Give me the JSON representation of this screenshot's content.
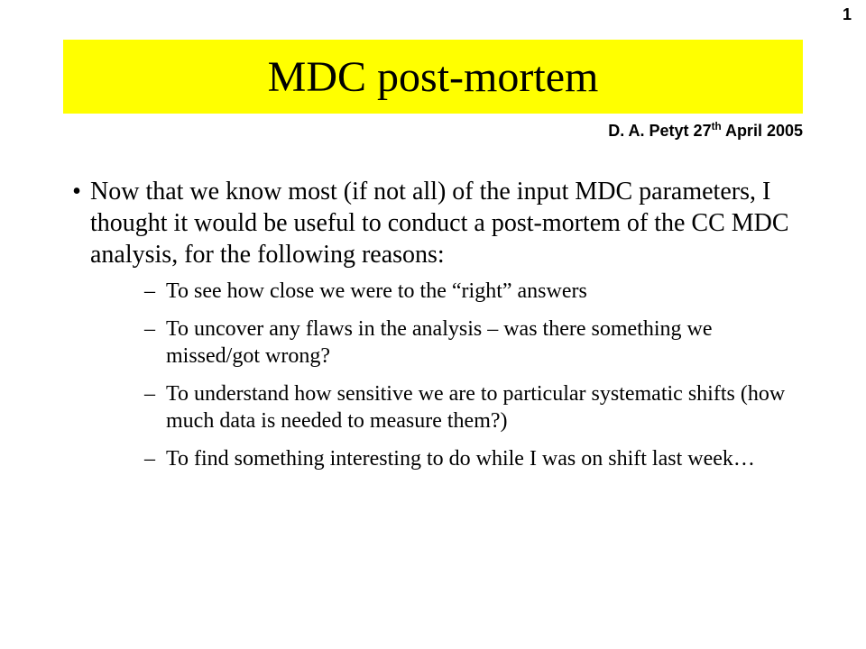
{
  "page_number": "1",
  "title": "MDC post-mortem",
  "byline_prefix": "D. A. Petyt  27",
  "byline_super": "th",
  "byline_suffix": " April 2005",
  "main_bullet": "Now that we know most (if not all) of the input MDC parameters, I thought it would be useful to conduct a post-mortem of the CC MDC analysis, for the following reasons:",
  "sub": {
    "a": "To see how close we were to the “right” answers",
    "b": "To uncover any flaws in the analysis – was there something we missed/got wrong?",
    "c": "To understand how sensitive we are to particular systematic shifts (how much data is needed to measure them?)",
    "d": "To find something interesting to do while I was on shift last week…"
  },
  "colors": {
    "title_bg": "#ffff00",
    "text": "#000000",
    "background": "#ffffff"
  }
}
